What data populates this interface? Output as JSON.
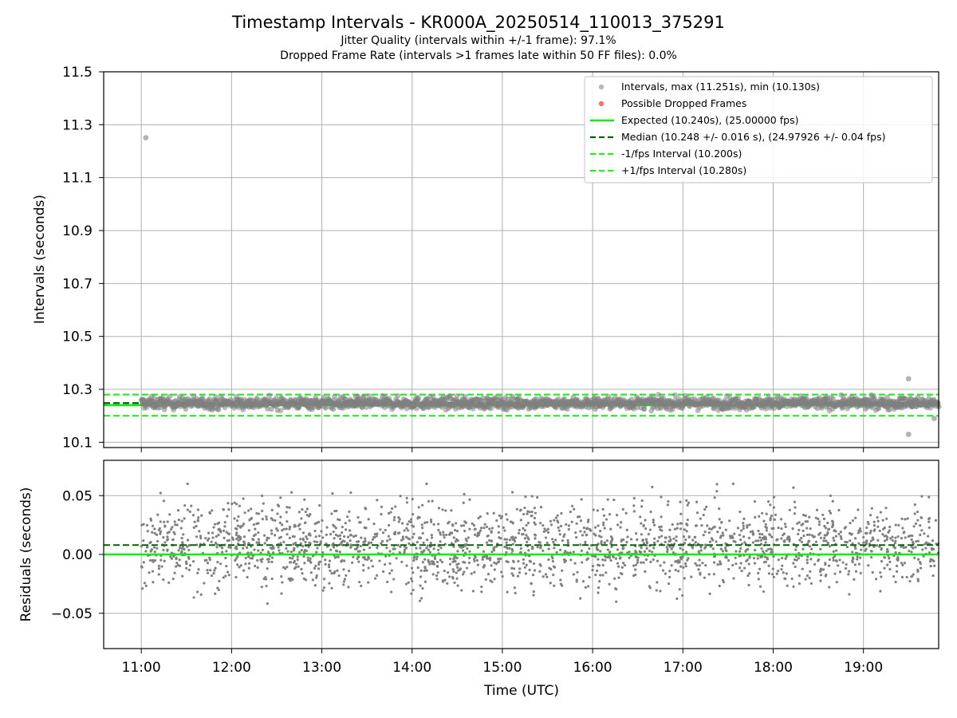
{
  "figure": {
    "title": "Timestamp Intervals - KR000A_20250514_110013_375291",
    "subtitle1": "Jitter Quality (intervals within +/-1 frame): 97.1%",
    "subtitle2": "Dropped Frame Rate (intervals >1 frames late within 50 FF files): 0.0%"
  },
  "colors": {
    "points": "#808080",
    "dropped": "#ff5555",
    "expected": "#00ee00",
    "median": "#006400",
    "band": "#22ee22"
  },
  "chart_data": [
    {
      "type": "scatter",
      "ylabel": "Intervals (seconds)",
      "xlim": [
        "10:35",
        "19:50"
      ],
      "ylim": [
        10.08,
        11.5
      ],
      "yticks": [
        10.1,
        10.3,
        10.5,
        10.7,
        10.9,
        11.1,
        11.3,
        11.5
      ],
      "ytick_labels": [
        "10.1",
        "10.3",
        "10.5",
        "10.7",
        "10.9",
        "11.1",
        "11.3",
        "11.5"
      ],
      "grid": true,
      "legend_position": "upper right",
      "legend": [
        "Intervals, max (11.251s), min (10.130s)",
        "Possible Dropped Frames",
        "Expected (10.240s), (25.00000 fps)",
        "Median (10.248 +/- 0.016 s), (24.97926 +/- 0.04 fps)",
        "-1/fps Interval (10.200s)",
        "+1/fps Interval (10.280s)"
      ],
      "reference_lines": {
        "expected": 10.24,
        "median": 10.248,
        "minus_1fps": 10.2,
        "plus_1fps": 10.28
      },
      "series": [
        {
          "name": "Intervals, max (11.251s), min (10.130s)",
          "description_range": [
            10.2,
            10.3
          ],
          "outliers": [
            {
              "x": "11:03",
              "y": 11.251
            },
            {
              "x": "19:30",
              "y": 10.34
            },
            {
              "x": "19:30",
              "y": 10.13
            },
            {
              "x": "19:47",
              "y": 10.19
            }
          ]
        },
        {
          "name": "Possible Dropped Frames",
          "values": []
        }
      ]
    },
    {
      "type": "scatter",
      "xlabel": "Time (UTC)",
      "ylabel": "Residuals (seconds)",
      "xlim": [
        "10:35",
        "19:50"
      ],
      "ylim": [
        -0.08,
        0.08
      ],
      "yticks": [
        -0.05,
        0.0,
        0.05
      ],
      "ytick_labels": [
        "−0.05",
        "0.00",
        "0.05"
      ],
      "xticks": [
        "11:00",
        "12:00",
        "13:00",
        "14:00",
        "15:00",
        "16:00",
        "17:00",
        "18:00",
        "19:00"
      ],
      "grid": true,
      "reference_lines": {
        "zero": 0.0,
        "median_residual": 0.008
      },
      "series": [
        {
          "name": "Residuals",
          "range": [
            -0.056,
            0.06
          ],
          "x_range": [
            "11:00",
            "19:50"
          ]
        }
      ]
    }
  ]
}
